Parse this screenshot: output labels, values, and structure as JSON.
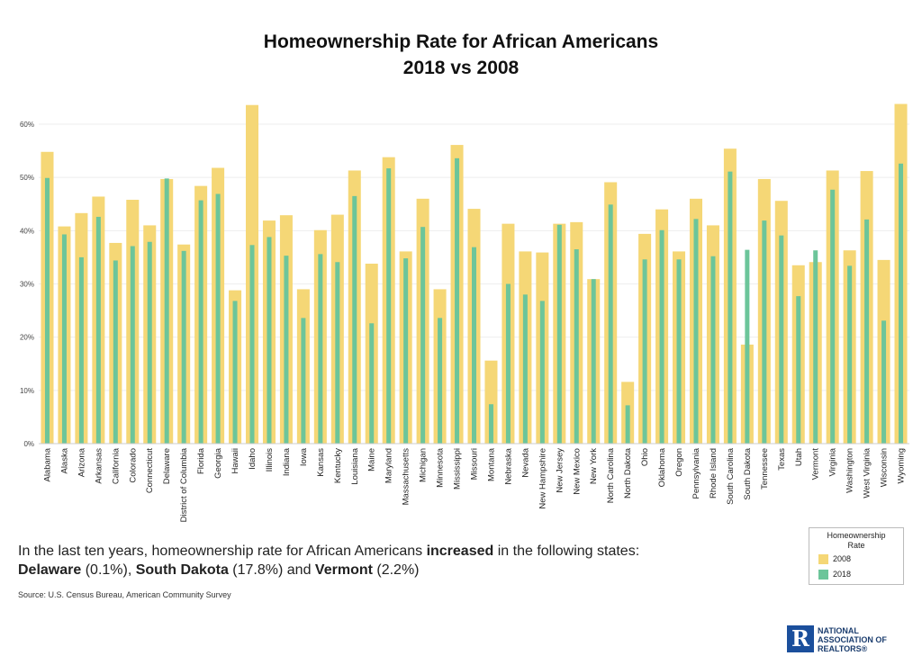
{
  "chart_data": {
    "type": "bar",
    "title_line1": "Homeownership Rate for African Americans",
    "title_line2": "2018 vs 2008",
    "categories": [
      "Alabama",
      "Alaska",
      "Arizona",
      "Arkansas",
      "California",
      "Colorado",
      "Connecticut",
      "Delaware",
      "District of Columbia",
      "Florida",
      "Georgia",
      "Hawaii",
      "Idaho",
      "Illinois",
      "Indiana",
      "Iowa",
      "Kansas",
      "Kentucky",
      "Louisiana",
      "Maine",
      "Maryland",
      "Massachusetts",
      "Michigan",
      "Minnesota",
      "Mississippi",
      "Missouri",
      "Montana",
      "Nebraska",
      "Nevada",
      "New Hampshire",
      "New Jersey",
      "New Mexico",
      "New York",
      "North Carolina",
      "North Dakota",
      "Ohio",
      "Oklahoma",
      "Oregon",
      "Pennsylvania",
      "Rhode Island",
      "South Carolina",
      "South Dakota",
      "Tennessee",
      "Texas",
      "Utah",
      "Vermont",
      "Virginia",
      "Washington",
      "West Virginia",
      "Wisconsin",
      "Wyoming"
    ],
    "series": [
      {
        "name": "2008",
        "color": "#f5d776",
        "values": [
          54.8,
          40.8,
          43.3,
          46.4,
          37.7,
          45.8,
          41.0,
          49.7,
          37.4,
          48.4,
          51.8,
          28.8,
          63.6,
          41.9,
          42.9,
          29.0,
          40.1,
          43.0,
          51.3,
          33.8,
          53.8,
          36.1,
          46.0,
          29.0,
          56.1,
          44.1,
          15.6,
          41.3,
          36.1,
          35.9,
          41.3,
          41.6,
          30.9,
          49.1,
          11.6,
          39.4,
          44.0,
          36.1,
          46.0,
          41.0,
          55.4,
          18.6,
          49.7,
          45.6,
          33.5,
          34.1,
          51.3,
          36.3,
          51.2,
          34.5,
          63.8
        ]
      },
      {
        "name": "2018",
        "color": "#6cc59a",
        "values": [
          49.9,
          39.3,
          35.0,
          42.6,
          34.4,
          37.1,
          37.9,
          49.8,
          36.2,
          45.7,
          46.9,
          26.8,
          37.3,
          38.8,
          35.3,
          23.6,
          35.6,
          34.1,
          46.5,
          22.6,
          51.7,
          34.8,
          40.7,
          23.6,
          53.6,
          36.9,
          7.4,
          30.0,
          28.0,
          26.8,
          41.1,
          36.5,
          30.9,
          44.9,
          7.2,
          34.6,
          40.1,
          34.6,
          42.2,
          35.2,
          51.1,
          36.4,
          41.9,
          39.1,
          27.7,
          36.3,
          47.7,
          33.4,
          42.1,
          23.1,
          52.6
        ]
      }
    ],
    "yticks": [
      "0%",
      "10%",
      "20%",
      "30%",
      "40%",
      "50%",
      "60%"
    ],
    "ylim": [
      0,
      65
    ],
    "grid": true,
    "legend_title_line1": "Homeownership",
    "legend_title_line2": "Rate",
    "legend_placement": "bottom-right"
  },
  "note": {
    "part1": "In the last ten years, homeownership rate for African Americans ",
    "part2": "increased",
    "part3": " in the following states:",
    "s1": "Delaware",
    "v1": " (0.1%), ",
    "s2": "South Dakota",
    "v2": " (17.8%) and ",
    "s3": "Vermont",
    "v3": " (2.2%)"
  },
  "source": "Source: U.S. Census Bureau, American Community Survey",
  "logo": {
    "letter": "R",
    "line1": "NATIONAL",
    "line2": "ASSOCIATION OF",
    "line3": "REALTORS®"
  }
}
